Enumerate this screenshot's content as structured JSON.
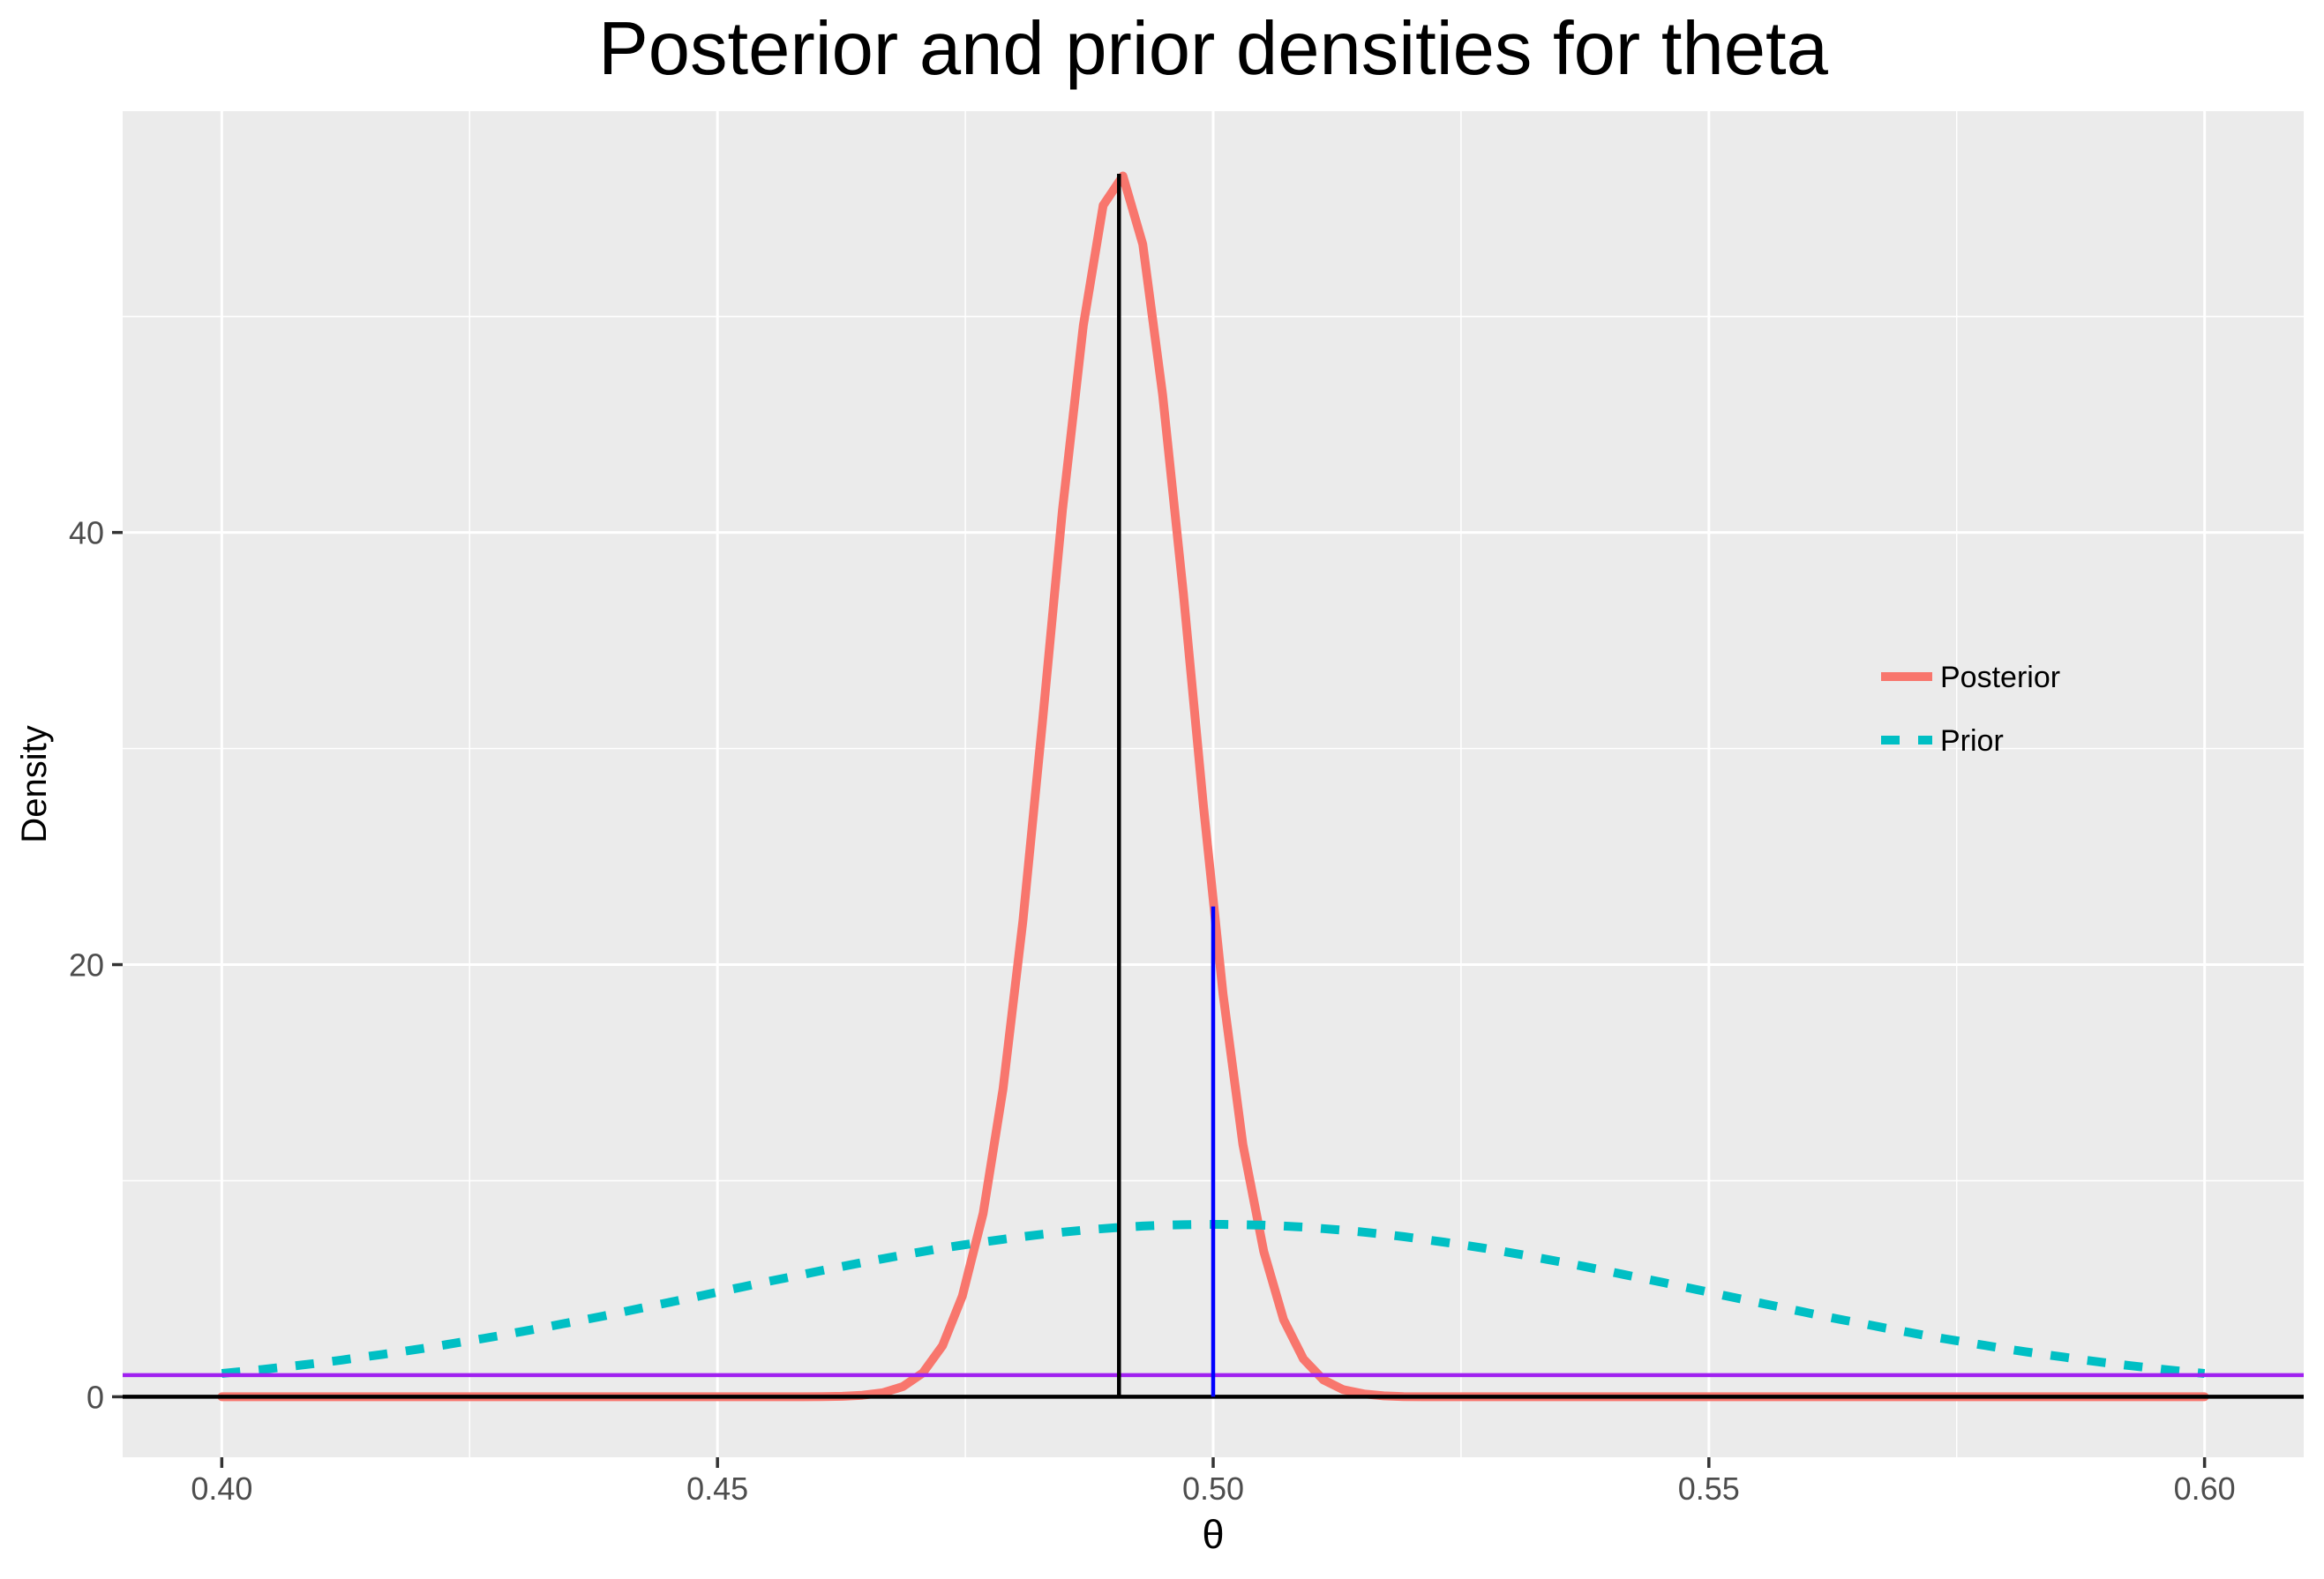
{
  "chart_data": {
    "type": "line",
    "title": "Posterior and prior densities for theta",
    "xlabel": "θ",
    "ylabel": "Density",
    "xlim": [
      0.39,
      0.61
    ],
    "ylim": [
      -2.8,
      59.5
    ],
    "xticks": [
      0.4,
      0.45,
      0.5,
      0.55,
      0.6
    ],
    "xtick_labels": [
      "0.40",
      "0.45",
      "0.50",
      "0.55",
      "0.60"
    ],
    "xminor": [
      0.425,
      0.475,
      0.525,
      0.575
    ],
    "yticks": [
      0,
      20,
      40
    ],
    "ytick_labels": [
      "0",
      "20",
      "40"
    ],
    "yminor": [
      10,
      30,
      50
    ],
    "grid": true,
    "legend": {
      "placement": "right-inside",
      "entries": [
        {
          "label": "Posterior",
          "color": "#f8766d",
          "linetype": "solid"
        },
        {
          "label": "Prior",
          "color": "#00bfc4",
          "linetype": "dashed"
        }
      ]
    },
    "x": [
      0.4,
      0.402,
      0.404,
      0.4061,
      0.4081,
      0.4101,
      0.4121,
      0.4141,
      0.4162,
      0.4182,
      0.4202,
      0.4222,
      0.4242,
      0.4263,
      0.4283,
      0.4303,
      0.4323,
      0.4343,
      0.4364,
      0.4384,
      0.4404,
      0.4424,
      0.4444,
      0.4465,
      0.4485,
      0.4505,
      0.4525,
      0.4545,
      0.4566,
      0.4586,
      0.4606,
      0.4626,
      0.4646,
      0.4667,
      0.4687,
      0.4707,
      0.4727,
      0.4747,
      0.4768,
      0.4788,
      0.4808,
      0.4828,
      0.4848,
      0.4869,
      0.4889,
      0.4909,
      0.4929,
      0.4949,
      0.497,
      0.499,
      0.501,
      0.503,
      0.5051,
      0.5071,
      0.5091,
      0.5111,
      0.5131,
      0.5152,
      0.5172,
      0.5192,
      0.5212,
      0.5232,
      0.5253,
      0.5273,
      0.5293,
      0.5313,
      0.5333,
      0.5354,
      0.5374,
      0.5394,
      0.5414,
      0.5434,
      0.5455,
      0.5475,
      0.5495,
      0.5515,
      0.5535,
      0.5556,
      0.5576,
      0.5596,
      0.5616,
      0.5636,
      0.5657,
      0.5677,
      0.5697,
      0.5717,
      0.5737,
      0.5758,
      0.5778,
      0.5798,
      0.5818,
      0.5838,
      0.5859,
      0.5879,
      0.5899,
      0.5919,
      0.5939,
      0.596,
      0.598,
      0.6
    ],
    "series": [
      {
        "name": "Posterior",
        "color": "#f8766d",
        "linetype": "solid",
        "values": [
          0,
          0,
          0,
          0,
          0,
          0,
          0,
          0,
          0,
          0,
          0,
          0,
          0,
          0,
          0,
          0,
          0,
          0,
          0,
          0,
          0,
          0,
          0,
          0,
          0,
          0,
          0,
          0,
          0,
          0,
          0.01,
          0.02,
          0.07,
          0.19,
          0.47,
          1.1,
          2.36,
          4.66,
          8.49,
          14.24,
          22.0,
          31.31,
          41.05,
          49.57,
          55.14,
          56.5,
          53.34,
          46.38,
          37.15,
          27.41,
          18.63,
          11.67,
          6.73,
          3.57,
          1.75,
          0.79,
          0.33,
          0.13,
          0.04,
          0.01,
          0,
          0,
          0,
          0,
          0,
          0,
          0,
          0,
          0,
          0,
          0,
          0,
          0,
          0,
          0,
          0,
          0,
          0,
          0,
          0,
          0,
          0,
          0,
          0,
          0,
          0,
          0,
          0,
          0,
          0,
          0,
          0,
          0,
          0,
          0,
          0,
          0,
          0,
          0,
          0
        ]
      },
      {
        "name": "Prior",
        "color": "#00bfc4",
        "linetype": "dashed",
        "values": [
          1.08,
          1.17,
          1.26,
          1.37,
          1.47,
          1.58,
          1.7,
          1.83,
          1.96,
          2.09,
          2.23,
          2.38,
          2.53,
          2.69,
          2.85,
          3.02,
          3.19,
          3.37,
          3.55,
          3.73,
          3.92,
          4.11,
          4.3,
          4.5,
          4.69,
          4.89,
          5.08,
          5.28,
          5.47,
          5.66,
          5.85,
          6.03,
          6.21,
          6.39,
          6.56,
          6.72,
          6.88,
          7.02,
          7.16,
          7.29,
          7.41,
          7.52,
          7.62,
          7.71,
          7.78,
          7.85,
          7.9,
          7.94,
          7.96,
          7.98,
          7.98,
          7.96,
          7.94,
          7.9,
          7.85,
          7.78,
          7.71,
          7.62,
          7.52,
          7.41,
          7.29,
          7.16,
          7.02,
          6.88,
          6.72,
          6.56,
          6.39,
          6.21,
          6.03,
          5.85,
          5.66,
          5.47,
          5.28,
          5.08,
          4.89,
          4.69,
          4.5,
          4.3,
          4.11,
          3.92,
          3.73,
          3.55,
          3.37,
          3.19,
          3.02,
          2.85,
          2.69,
          2.53,
          2.38,
          2.23,
          2.09,
          1.96,
          1.83,
          1.7,
          1.58,
          1.47,
          1.37,
          1.26,
          1.17,
          1.08
        ]
      }
    ],
    "reference_lines": [
      {
        "name": "zero-line",
        "type": "hline",
        "y": 0,
        "color": "#000000"
      },
      {
        "name": "uniform-level-line",
        "type": "hline",
        "y": 1,
        "color": "#a020f0"
      },
      {
        "name": "posterior-mode-line",
        "type": "segment",
        "x": 0.4905,
        "y_from": 0,
        "y_to": 56.6,
        "color": "#000000"
      },
      {
        "name": "theta-half-line",
        "type": "segment",
        "x": 0.5,
        "y_from": 0,
        "y_to": 22.69,
        "color": "#0000ff"
      }
    ]
  }
}
